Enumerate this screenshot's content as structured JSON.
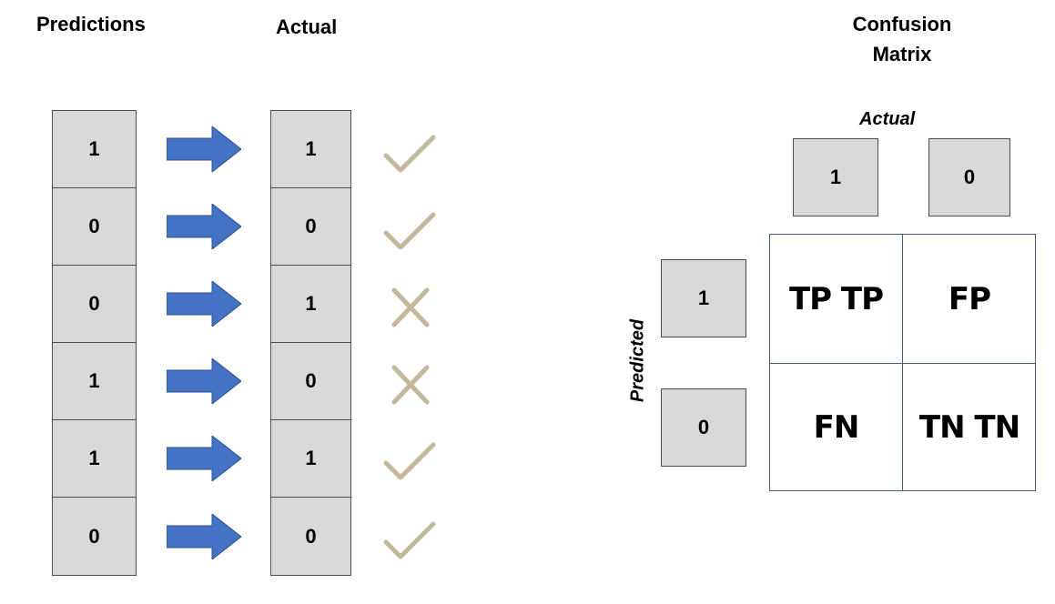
{
  "left": {
    "predictions_title": "Predictions",
    "actual_title": "Actual",
    "rows": [
      {
        "prediction": "1",
        "actual": "1",
        "result": "check"
      },
      {
        "prediction": "0",
        "actual": "0",
        "result": "check"
      },
      {
        "prediction": "0",
        "actual": "1",
        "result": "cross"
      },
      {
        "prediction": "1",
        "actual": "0",
        "result": "cross"
      },
      {
        "prediction": "1",
        "actual": "1",
        "result": "check"
      },
      {
        "prediction": "0",
        "actual": "0",
        "result": "check"
      }
    ]
  },
  "matrix": {
    "title_line1": "Confusion",
    "title_line2": "Matrix",
    "actual_label": "Actual",
    "predicted_label": "Predicted",
    "actual_headers": [
      "1",
      "0"
    ],
    "predicted_headers": [
      "1",
      "0"
    ],
    "tp": "TP TP",
    "fp": "FP",
    "fn": "FN",
    "tn": "TN TN"
  },
  "colors": {
    "arrow": "#4472c4",
    "mark": "#c4b89a",
    "cell_fill": "#d9d9d9"
  }
}
